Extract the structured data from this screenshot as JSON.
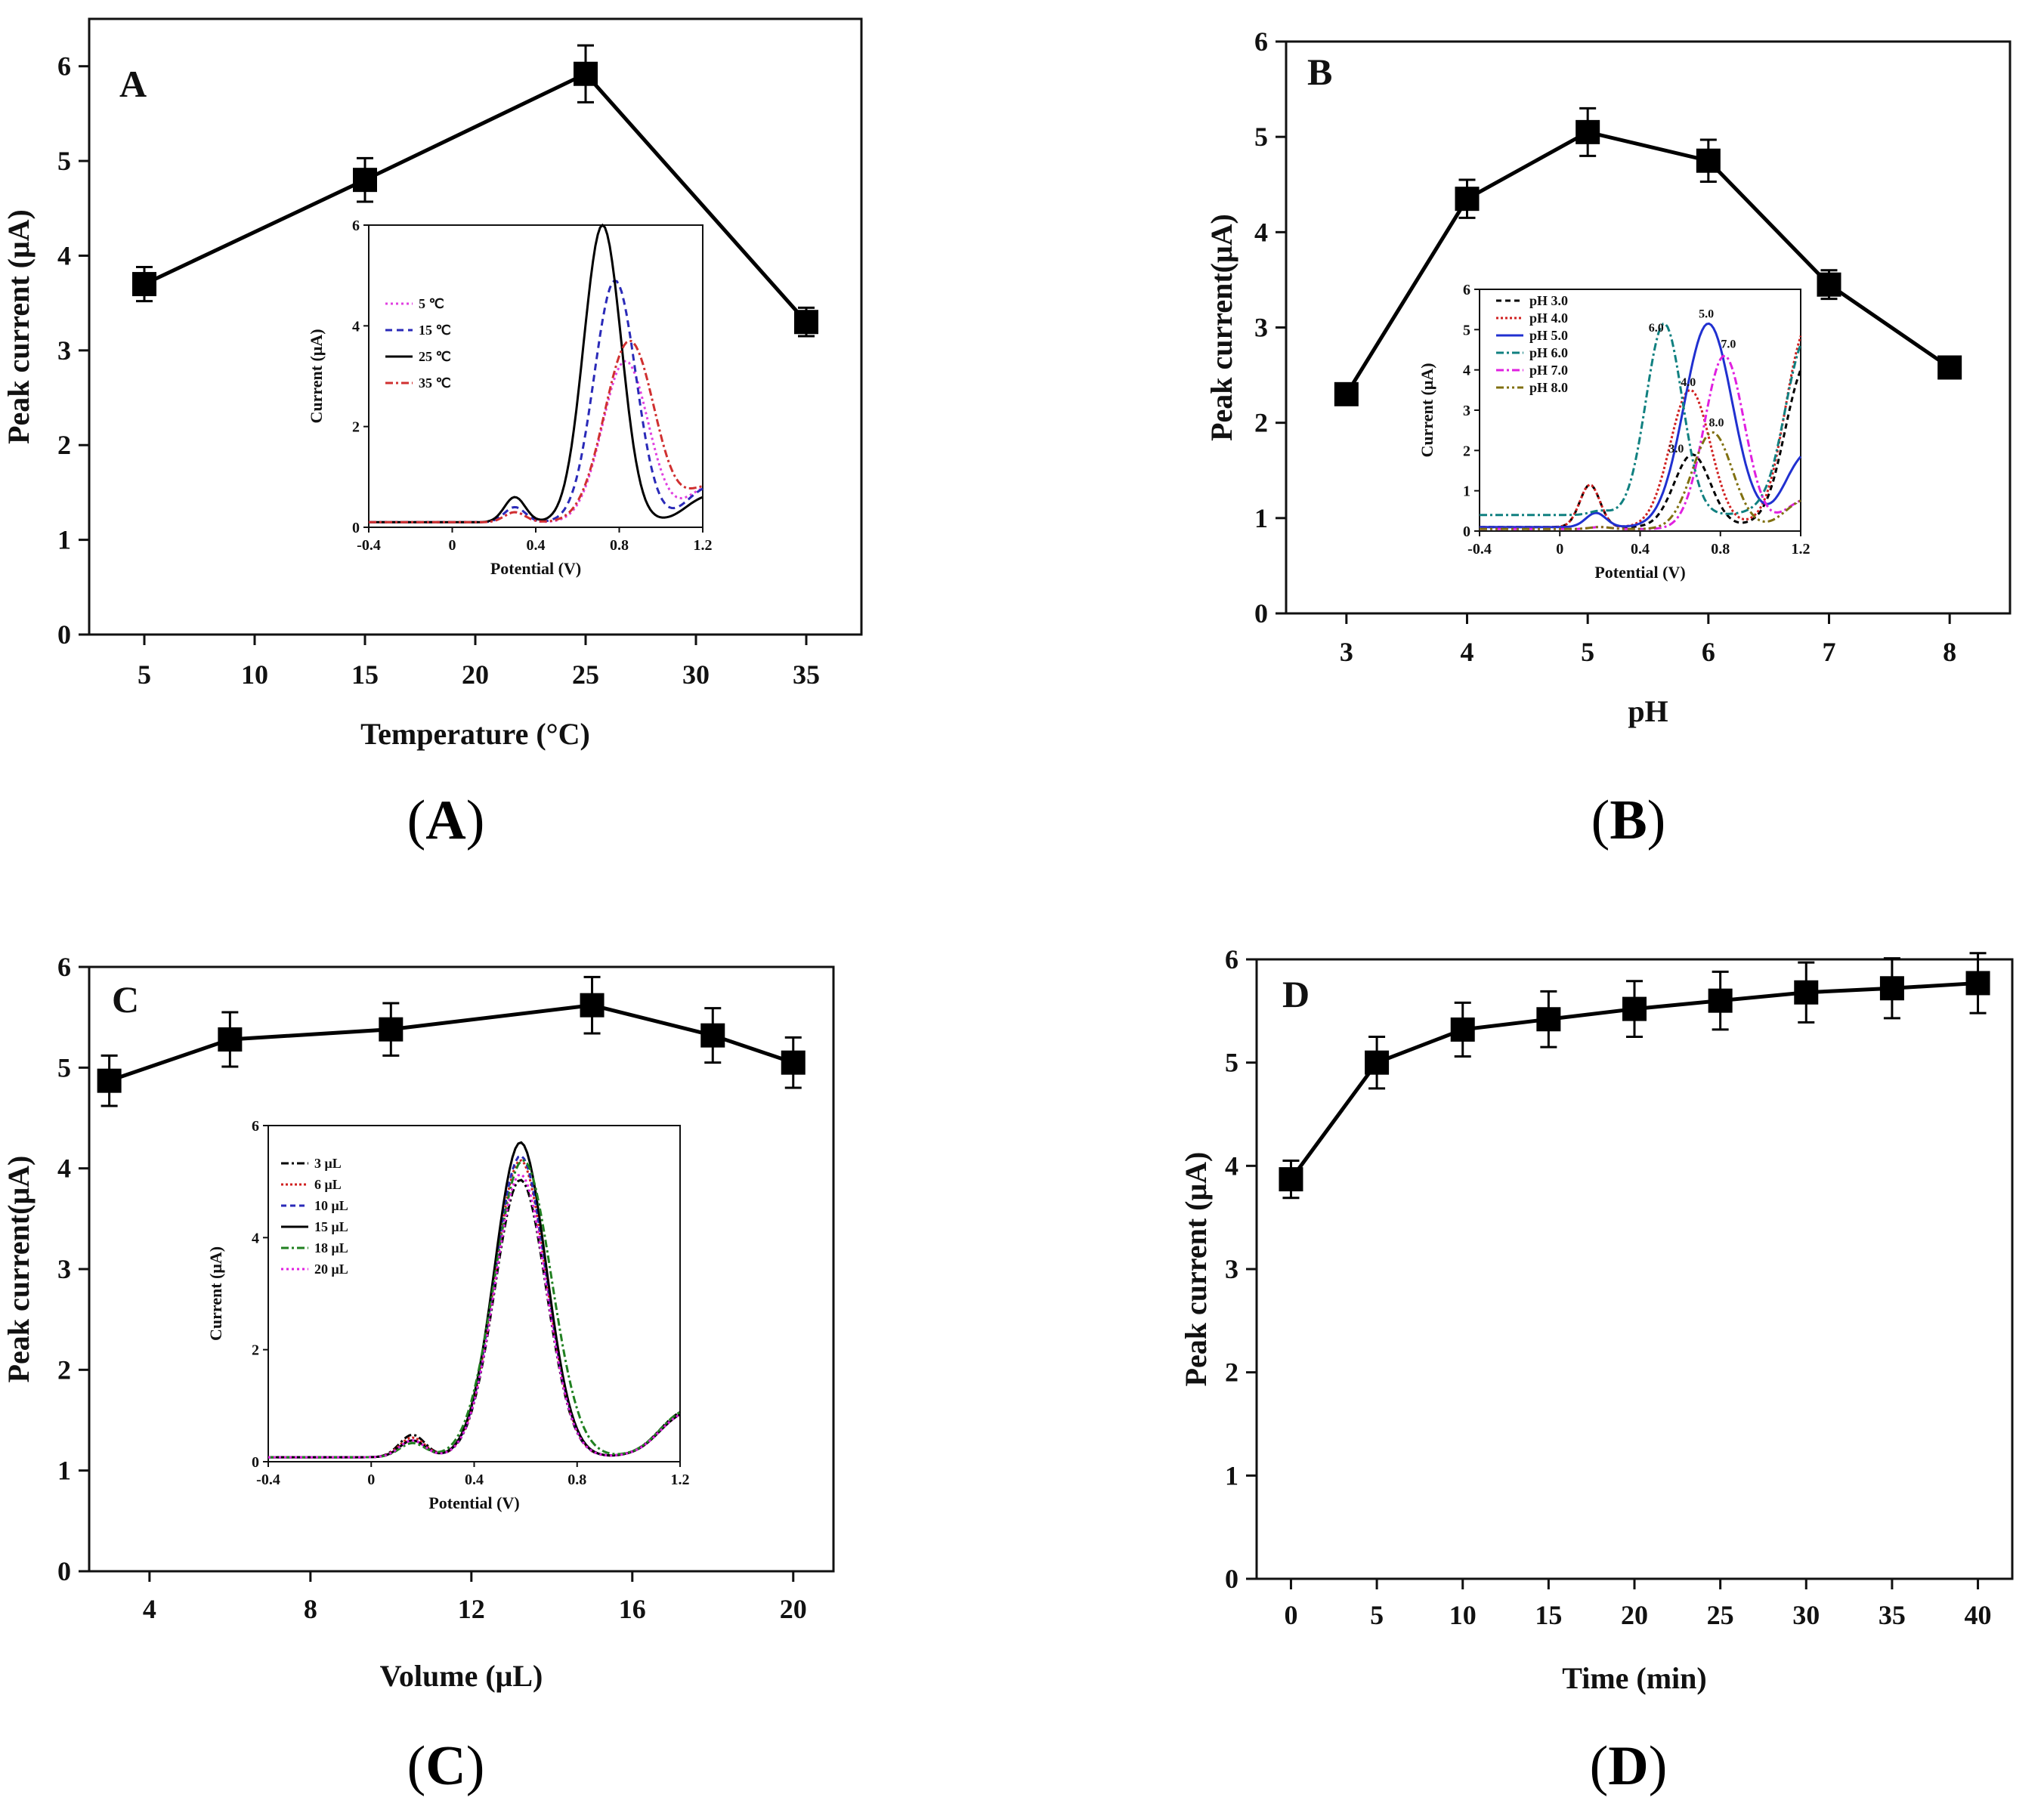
{
  "chart_data": [
    {
      "panel": "A",
      "type": "line",
      "title": "",
      "panel_letter": "A",
      "caption_open": "(",
      "caption_letter": "A",
      "caption_close": ")",
      "xlabel": "Temperature (°C)",
      "ylabel": "Peak current (μA)",
      "xlim": [
        2.5,
        37.5
      ],
      "ylim": [
        0,
        6.5
      ],
      "xticks": [
        5,
        10,
        15,
        20,
        25,
        30,
        35
      ],
      "yticks": [
        0,
        1,
        2,
        3,
        4,
        5,
        6
      ],
      "x": [
        5,
        15,
        25,
        35
      ],
      "y": [
        3.7,
        4.8,
        5.92,
        3.3
      ],
      "error": [
        0.18,
        0.23,
        0.3,
        0.15
      ],
      "inset": {
        "xlabel": "Potential (V)",
        "ylabel": "Current (μA)",
        "xlim": [
          -0.4,
          1.2
        ],
        "ylim": [
          0,
          6
        ],
        "xticks": [
          -0.4,
          0.0,
          0.4,
          0.8,
          1.2
        ],
        "yticks": [
          0,
          2,
          4,
          6
        ],
        "series": [
          {
            "name": "5 ℃",
            "color": "#e040e0",
            "dash": "3,4",
            "peak": 3.2,
            "peak_x": 0.83,
            "width": 0.11,
            "pre_peak": 0.2,
            "tail": 0.9,
            "baseline": 0.1
          },
          {
            "name": "15 ℃",
            "color": "#2a2ab8",
            "dash": "9,6",
            "peak": 4.8,
            "peak_x": 0.78,
            "width": 0.1,
            "pre_peak": 0.3,
            "tail": 0.9,
            "baseline": 0.1
          },
          {
            "name": "25 ℃",
            "color": "#000000",
            "dash": "",
            "peak": 5.9,
            "peak_x": 0.72,
            "width": 0.09,
            "pre_peak": 0.5,
            "tail": 0.7,
            "baseline": 0.1
          },
          {
            "name": "35 ℃",
            "color": "#d03030",
            "dash": "10,4,3,4",
            "peak": 3.6,
            "peak_x": 0.85,
            "width": 0.12,
            "pre_peak": 0.2,
            "tail": 0.9,
            "baseline": 0.1
          }
        ]
      }
    },
    {
      "panel": "B",
      "type": "line",
      "title": "",
      "panel_letter": "B",
      "caption_open": "(",
      "caption_letter": "B",
      "caption_close": ")",
      "xlabel": "pH",
      "ylabel": "Peak current(μA)",
      "xlim": [
        2.5,
        8.5
      ],
      "ylim": [
        0,
        6
      ],
      "xticks": [
        3,
        4,
        5,
        6,
        7,
        8
      ],
      "yticks": [
        0,
        1,
        2,
        3,
        4,
        5,
        6
      ],
      "x": [
        3,
        4,
        5,
        6,
        7,
        8
      ],
      "y": [
        2.3,
        4.35,
        5.05,
        4.75,
        3.45,
        2.58
      ],
      "error": [
        0.1,
        0.2,
        0.25,
        0.22,
        0.15,
        0.1
      ],
      "inset": {
        "xlabel": "Potential (V)",
        "ylabel": "Current (μA)",
        "xlim": [
          -0.4,
          1.2
        ],
        "ylim": [
          0,
          6
        ],
        "xticks": [
          -0.4,
          0.0,
          0.4,
          0.8,
          1.2
        ],
        "yticks": [
          0,
          1,
          2,
          3,
          4,
          5,
          6
        ],
        "series": [
          {
            "name": "pH 3.0",
            "color": "#000000",
            "dash": "7,5",
            "peak": 1.8,
            "peak_x": 0.66,
            "width": 0.09,
            "pre_peak": 1.05,
            "pre_x": 0.15,
            "tail": 4.8,
            "baseline": 0.1
          },
          {
            "name": "pH 4.0",
            "color": "#d02020",
            "dash": "3,3",
            "peak": 3.4,
            "peak_x": 0.65,
            "width": 0.1,
            "pre_peak": 1.05,
            "pre_x": 0.15,
            "tail": 5.8,
            "baseline": 0.1
          },
          {
            "name": "pH 5.0",
            "color": "#2030d0",
            "dash": "",
            "peak": 5.05,
            "peak_x": 0.74,
            "width": 0.12,
            "pre_peak": 0.35,
            "pre_x": 0.18,
            "tail": 2.2,
            "baseline": 0.1
          },
          {
            "name": "pH 6.0",
            "color": "#108080",
            "dash": "10,4,3,4",
            "peak": 4.75,
            "peak_x": 0.52,
            "width": 0.09,
            "pre_peak": 0.1,
            "pre_x": 0.2,
            "tail": 5.5,
            "baseline": 0.4
          },
          {
            "name": "pH 7.0",
            "color": "#e020e0",
            "dash": "10,4,3,4",
            "peak": 4.3,
            "peak_x": 0.82,
            "width": 0.1,
            "pre_peak": 0.05,
            "pre_x": 0.2,
            "tail": 0.9,
            "baseline": 0.05
          },
          {
            "name": "pH 8.0",
            "color": "#807010",
            "dash": "10,4,3,4,3,4",
            "peak": 2.4,
            "peak_x": 0.76,
            "width": 0.1,
            "pre_peak": 0.05,
            "pre_x": 0.2,
            "tail": 0.9,
            "baseline": 0.05
          }
        ],
        "peak_labels": [
          {
            "text": "6.0",
            "x": 0.48,
            "y": 4.95
          },
          {
            "text": "5.0",
            "x": 0.73,
            "y": 5.3
          },
          {
            "text": "7.0",
            "x": 0.84,
            "y": 4.55
          },
          {
            "text": "4.0",
            "x": 0.64,
            "y": 3.6
          },
          {
            "text": "8.0",
            "x": 0.78,
            "y": 2.6
          },
          {
            "text": "3.0",
            "x": 0.58,
            "y": 1.95
          }
        ]
      }
    },
    {
      "panel": "C",
      "type": "line",
      "title": "",
      "panel_letter": "C",
      "caption_open": "(",
      "caption_letter": "C",
      "caption_close": ")",
      "xlabel": "Volume (μL)",
      "ylabel": "Peak current(μA)",
      "xlim": [
        2.5,
        21.0
      ],
      "ylim": [
        0,
        6
      ],
      "xticks": [
        4,
        8,
        12,
        16,
        20
      ],
      "yticks": [
        0,
        1,
        2,
        3,
        4,
        5,
        6
      ],
      "x": [
        3,
        6,
        10,
        15,
        18,
        20
      ],
      "y": [
        4.87,
        5.28,
        5.38,
        5.62,
        5.32,
        5.05
      ],
      "error": [
        0.25,
        0.27,
        0.26,
        0.28,
        0.27,
        0.25
      ],
      "inset": {
        "xlabel": "Potential (V)",
        "ylabel": "Current (μA)",
        "xlim": [
          -0.4,
          1.2
        ],
        "ylim": [
          0,
          6
        ],
        "xticks": [
          -0.4,
          0.0,
          0.4,
          0.8,
          1.2
        ],
        "yticks": [
          0,
          2,
          4,
          6
        ],
        "series": [
          {
            "name": "3 μL",
            "color": "#000000",
            "dash": "10,4,3,4",
            "peak": 4.95,
            "peak_x": 0.58,
            "width": 0.1,
            "pre_peak": 0.4,
            "pre_x": 0.16,
            "tail": 1.05,
            "baseline": 0.08
          },
          {
            "name": "6 μL",
            "color": "#d02020",
            "dash": "3,3",
            "peak": 5.3,
            "peak_x": 0.58,
            "width": 0.1,
            "pre_peak": 0.35,
            "pre_x": 0.16,
            "tail": 1.0,
            "baseline": 0.08
          },
          {
            "name": "10 μL",
            "color": "#2a2ab8",
            "dash": "7,5",
            "peak": 5.38,
            "peak_x": 0.58,
            "width": 0.1,
            "pre_peak": 0.3,
            "pre_x": 0.16,
            "tail": 1.0,
            "baseline": 0.08
          },
          {
            "name": "15 μL",
            "color": "#000000",
            "dash": "",
            "peak": 5.62,
            "peak_x": 0.58,
            "width": 0.1,
            "pre_peak": 0.3,
            "pre_x": 0.16,
            "tail": 1.0,
            "baseline": 0.08
          },
          {
            "name": "18 μL",
            "color": "#208020",
            "dash": "10,4,3,4",
            "peak": 5.3,
            "peak_x": 0.59,
            "width": 0.11,
            "pre_peak": 0.25,
            "pre_x": 0.16,
            "tail": 1.05,
            "baseline": 0.08
          },
          {
            "name": "20 μL",
            "color": "#e020e0",
            "dash": "3,4",
            "peak": 5.05,
            "peak_x": 0.58,
            "width": 0.1,
            "pre_peak": 0.3,
            "pre_x": 0.16,
            "tail": 1.0,
            "baseline": 0.08
          }
        ]
      }
    },
    {
      "panel": "D",
      "type": "line",
      "title": "",
      "panel_letter": "D",
      "caption_open": "(",
      "caption_letter": "D",
      "caption_close": ")",
      "xlabel": "Time (min)",
      "ylabel": "Peak current (μA)",
      "xlim": [
        -2,
        42
      ],
      "ylim": [
        0,
        6
      ],
      "xticks": [
        0,
        5,
        10,
        15,
        20,
        25,
        30,
        35,
        40
      ],
      "yticks": [
        0,
        1,
        2,
        3,
        4,
        5,
        6
      ],
      "x": [
        0,
        5,
        10,
        15,
        20,
        25,
        30,
        35,
        40
      ],
      "y": [
        3.87,
        5.0,
        5.32,
        5.42,
        5.52,
        5.6,
        5.68,
        5.72,
        5.77
      ],
      "error": [
        0.18,
        0.25,
        0.26,
        0.27,
        0.27,
        0.28,
        0.29,
        0.29,
        0.29
      ]
    }
  ]
}
